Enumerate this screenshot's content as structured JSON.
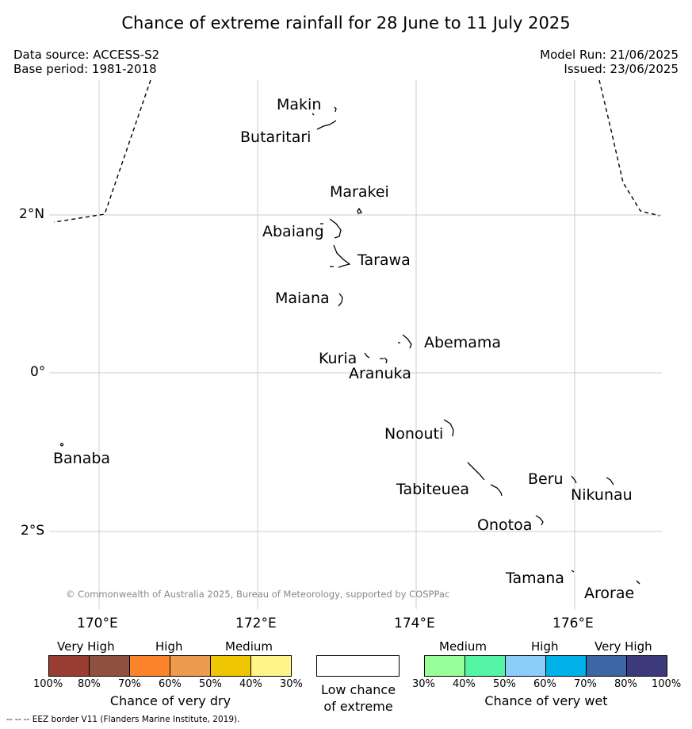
{
  "title": "Chance of extreme rainfall for 28 June to 11 July 2025",
  "meta": {
    "source_line": "Data source: ACCESS-S2",
    "period_line": "Base period: 1981-2018",
    "run_line": "Model Run: 21/06/2025",
    "issued_line": "Issued: 23/06/2025"
  },
  "map": {
    "lat_labels": [
      "2°N",
      "0°",
      "2°S"
    ],
    "lon_labels": [
      "170°E",
      "172°E",
      "174°E",
      "176°E"
    ],
    "places": [
      "Makin",
      "Butaritari",
      "Marakei",
      "Abaiang",
      "Tarawa",
      "Maiana",
      "Abemama",
      "Kuria",
      "Aranuka",
      "Nonouti",
      "Banaba",
      "Tabiteuea",
      "Beru",
      "Nikunau",
      "Onotoa",
      "Tamana",
      "Arorae"
    ],
    "copyright": "© Commonwealth of Australia 2025, Bureau of Meteorology, supported by COSPPac",
    "line_color": "#000000",
    "gridline_color": "#cccccc"
  },
  "legend": {
    "dry": {
      "heads": [
        "Very High",
        "High",
        "Medium"
      ],
      "colors": [
        "#9a3d33",
        "#8f5040",
        "#fd842b",
        "#ec9a4c",
        "#efc603",
        "#fef487"
      ],
      "ticks": [
        "100%",
        "80%",
        "70%",
        "60%",
        "50%",
        "40%",
        "30%"
      ],
      "title": "Chance of very dry"
    },
    "low": {
      "title_line1": "Low chance",
      "title_line2": "of extreme",
      "color": "#ffffff"
    },
    "wet": {
      "heads": [
        "Medium",
        "High",
        "Very High"
      ],
      "colors": [
        "#99ff99",
        "#54f5a4",
        "#8ccdf9",
        "#00b1ea",
        "#3c66a4",
        "#3d3a7c"
      ],
      "ticks": [
        "30%",
        "40%",
        "50%",
        "60%",
        "70%",
        "80%",
        "100%"
      ],
      "title": "Chance of very wet"
    }
  },
  "footnote": "--  --  -- EEZ border V11 (Flanders Marine Institute, 2019)."
}
